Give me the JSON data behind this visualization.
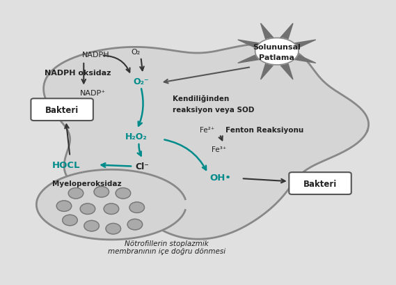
{
  "bg_color": "#e0e0e0",
  "arrow_color_black": "#333333",
  "arrow_color_teal": "#008B8B",
  "text_color_black": "#222222",
  "text_color_teal": "#008B8B",
  "title_line1": "Solununsal",
  "title_line2": "Patlama",
  "NADPH": "NADPH",
  "NADPH_oksidaz": "NADPH oksidaz",
  "NADP": "NADP⁺",
  "O2": "O₂",
  "O2_radical": "O₂⁻",
  "H2O2": "H₂O₂",
  "Cl": "Cl⁻",
  "HOCL": "HOCL",
  "Myeloperoksidaz": "Myeloperoksidaz",
  "Bakteri1": "Bakteri",
  "Bakteri2": "Bakteri",
  "Fe2": "Fe²⁺",
  "Fe3": "Fe³⁺",
  "OH": "OH•",
  "Fenton": "Fenton Reaksiyonu",
  "Kendilinden1": "Kendiliğinden",
  "Kendilinden2": "reaksiyon veya SOD",
  "Notrofil": "Nötrofillerin stoplazmik\nmembranının içe doğru dönmesi"
}
